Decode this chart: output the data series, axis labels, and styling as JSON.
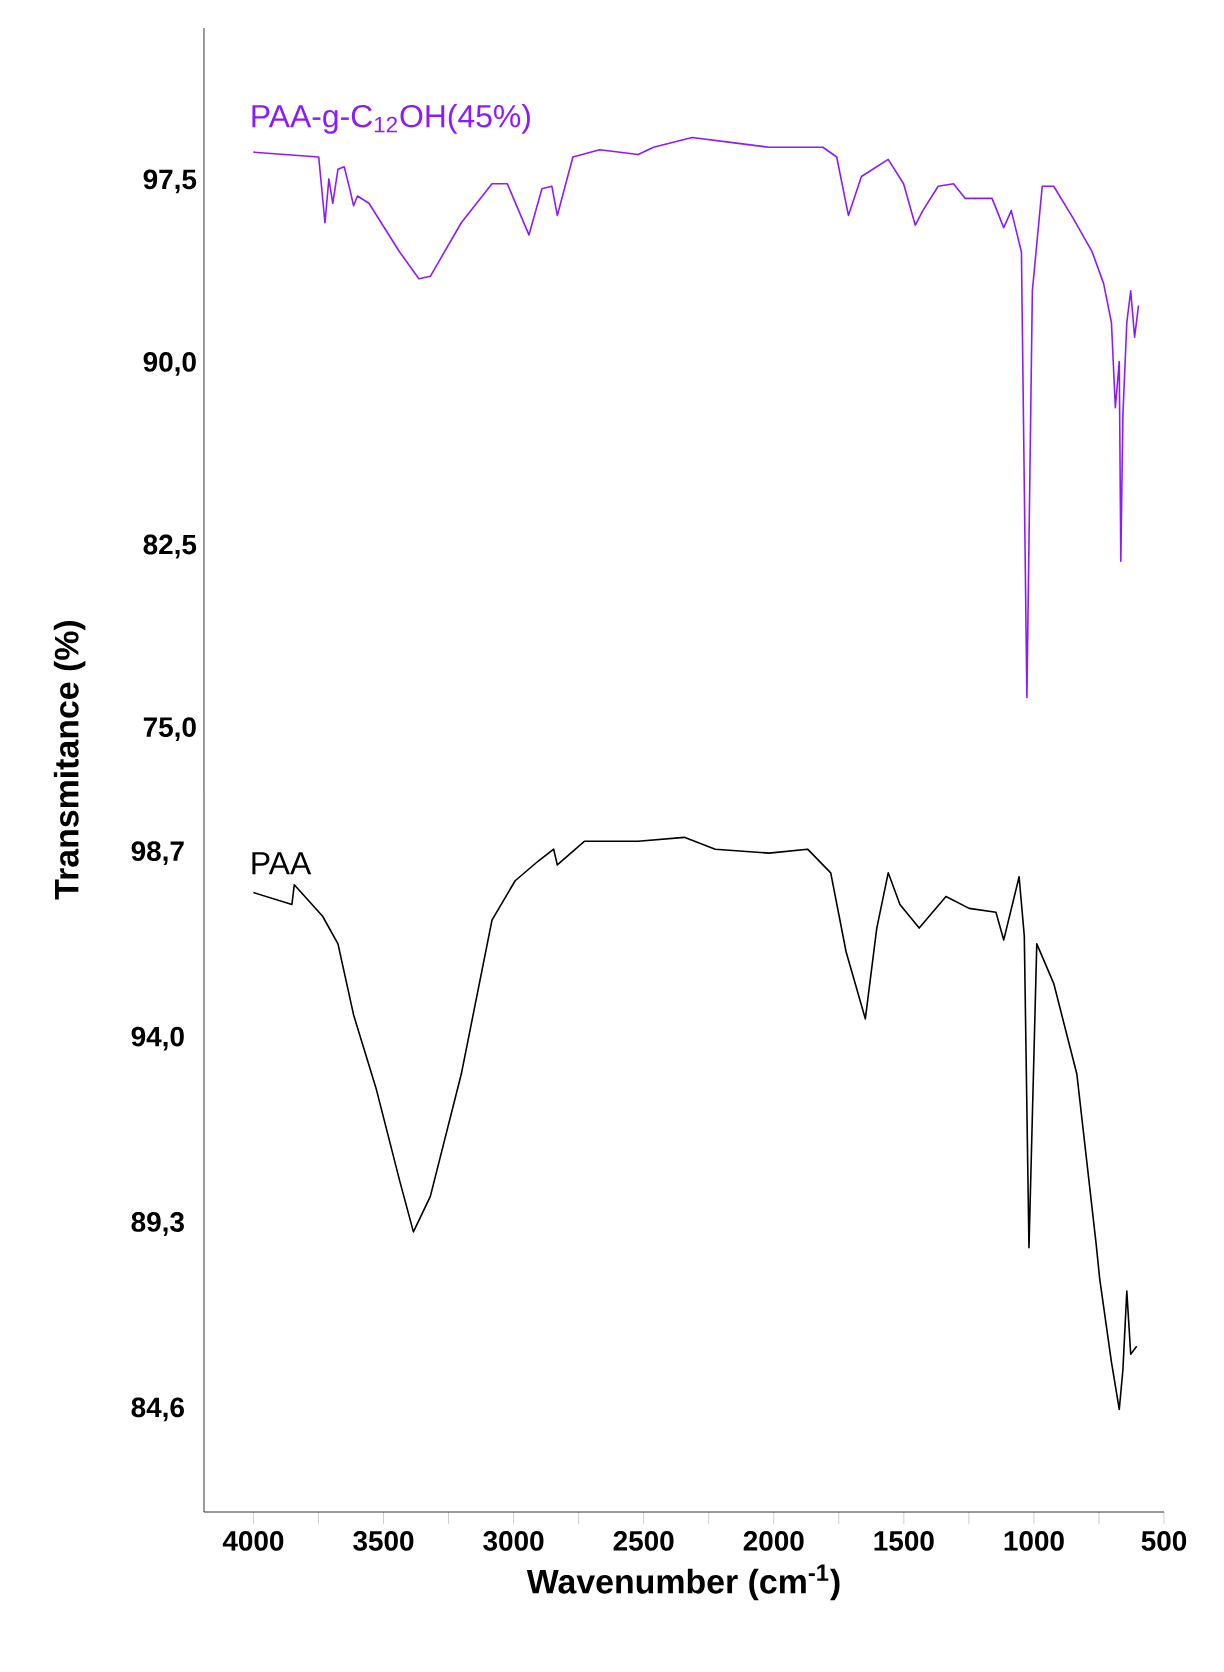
{
  "chart_data": [
    {
      "type": "line",
      "ylabel": "Transmitance (%)",
      "tick_labels": "y",
      "xlim": [
        4190,
        500
      ],
      "ylim": [
        72.5,
        103.8
      ],
      "yticks": [
        {
          "value": 75,
          "label": "75,0"
        },
        {
          "value": 82.5,
          "label": "82,5"
        },
        {
          "value": 90,
          "label": "90,0"
        },
        {
          "value": 97.5,
          "label": "97,5"
        }
      ],
      "series": [
        {
          "name": "PAA-g-C$_{12}$OH(45%)",
          "color": "#8c1aff",
          "x": [
            4000,
            3749,
            3725,
            3710,
            3695,
            3675,
            3651,
            3630,
            3615,
            3600,
            3556,
            3438,
            3364,
            3320,
            3201,
            3083,
            3024,
            2941,
            2891,
            2853,
            2832,
            2772,
            2669,
            2521,
            2462,
            2314,
            2166,
            2018,
            1811,
            1758,
            1713,
            1663,
            1560,
            1501,
            1456,
            1427,
            1368,
            1309,
            1264,
            1161,
            1116,
            1087,
            1048,
            1027,
            1006,
            968,
            924,
            850,
            776,
            732,
            702,
            687,
            672,
            666,
            658,
            643,
            628,
            613,
            598
          ],
          "values": [
            98.7,
            98.5,
            95.8,
            97.6,
            96.6,
            98.0,
            98.1,
            97.2,
            96.5,
            96.9,
            96.6,
            94.6,
            93.5,
            93.6,
            95.8,
            97.4,
            97.4,
            95.3,
            97.2,
            97.3,
            96.1,
            98.5,
            98.8,
            98.6,
            98.9,
            99.3,
            99.1,
            98.9,
            98.9,
            98.5,
            96.1,
            97.7,
            98.4,
            97.4,
            95.7,
            96.3,
            97.3,
            97.4,
            96.8,
            96.8,
            95.6,
            96.3,
            94.6,
            76.3,
            93.0,
            97.3,
            97.3,
            96.0,
            94.6,
            93.3,
            91.7,
            88.2,
            90.1,
            81.9,
            87.9,
            91.7,
            93.0,
            91.1,
            92.4
          ]
        }
      ]
    },
    {
      "type": "line",
      "xlabel": "Wavenumber (cm$^{-1}$)",
      "xlim": [
        4190,
        500
      ],
      "ylim": [
        82,
        100.3
      ],
      "xticks": [
        4000,
        {
          "value": 3750,
          "label": null
        },
        3500,
        {
          "value": 3250,
          "label": null
        },
        3000,
        {
          "value": 2750,
          "label": null
        },
        2500,
        {
          "value": 2250,
          "label": null
        },
        2000,
        {
          "value": 1750,
          "label": null
        },
        1500,
        {
          "value": 1250,
          "label": null
        },
        1000,
        {
          "value": 750,
          "label": null
        },
        500
      ],
      "yticks": [
        {
          "value": 84.6,
          "label": "84,6"
        },
        {
          "value": 89.3,
          "label": "89,3"
        },
        {
          "value": 94.0,
          "label": "94,0"
        },
        {
          "value": 98.7,
          "label": "98,7"
        }
      ],
      "series": [
        {
          "name": "PAA",
          "color": "#000000",
          "x": [
            4000,
            3852,
            3843,
            3734,
            3675,
            3615,
            3527,
            3438,
            3385,
            3320,
            3201,
            3083,
            2994,
            2905,
            2846,
            2832,
            2728,
            2521,
            2344,
            2225,
            2018,
            1870,
            1781,
            1722,
            1648,
            1604,
            1560,
            1515,
            1441,
            1338,
            1249,
            1146,
            1116,
            1057,
            1037,
            1019,
            989,
            924,
            835,
            761,
            747,
            702,
            672,
            658,
            643,
            628,
            605
          ],
          "values": [
            97.7,
            97.4,
            97.9,
            97.1,
            96.4,
            94.6,
            92.7,
            90.4,
            89.1,
            90.0,
            93.1,
            97.0,
            98.0,
            98.5,
            98.8,
            98.4,
            99.0,
            99.0,
            99.1,
            98.8,
            98.7,
            98.8,
            98.2,
            96.2,
            94.5,
            96.8,
            98.2,
            97.4,
            96.8,
            97.6,
            97.3,
            97.2,
            96.5,
            98.1,
            96.6,
            88.7,
            96.4,
            95.4,
            93.1,
            88.8,
            87.9,
            85.8,
            84.6,
            85.6,
            87.6,
            86.0,
            86.2
          ]
        }
      ]
    }
  ]
}
